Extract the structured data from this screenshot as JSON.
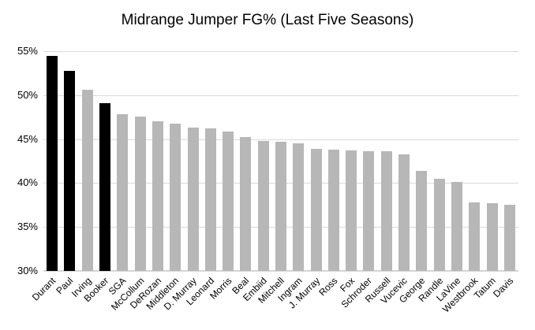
{
  "chart_data": {
    "type": "bar",
    "title": "Midrange Jumper FG% (Last Five Seasons)",
    "xlabel": "",
    "ylabel": "",
    "ylim": [
      30,
      55
    ],
    "grid": true,
    "legend": "none",
    "y_ticks": [
      {
        "v": 30,
        "label": "30%"
      },
      {
        "v": 35,
        "label": "35%"
      },
      {
        "v": 40,
        "label": "40%"
      },
      {
        "v": 45,
        "label": "45%"
      },
      {
        "v": 50,
        "label": "50%"
      },
      {
        "v": 55,
        "label": "55%"
      }
    ],
    "categories": [
      "Durant",
      "Paul",
      "Irving",
      "Booker",
      "SGA",
      "McCollum",
      "DeRozan",
      "Middleton",
      "D. Murray",
      "Leonard",
      "Morris",
      "Beal",
      "Embiid",
      "Mitchell",
      "Ingram",
      "J. Murray",
      "Ross",
      "Fox",
      "Schroder",
      "Russell",
      "Vucevic",
      "George",
      "Randle",
      "LaVine",
      "Westbrook",
      "Tatum",
      "Davis"
    ],
    "values": [
      54.5,
      52.8,
      50.6,
      49.1,
      47.8,
      47.6,
      47.0,
      46.8,
      46.3,
      46.2,
      45.9,
      45.2,
      44.8,
      44.7,
      44.5,
      43.9,
      43.8,
      43.7,
      43.6,
      43.6,
      43.3,
      41.4,
      40.5,
      40.1,
      37.8,
      37.7,
      37.5
    ],
    "bar_colors": [
      "#000000",
      "#000000",
      "#b7b7b7",
      "#000000",
      "#b7b7b7",
      "#b7b7b7",
      "#b7b7b7",
      "#b7b7b7",
      "#b7b7b7",
      "#b7b7b7",
      "#b7b7b7",
      "#b7b7b7",
      "#b7b7b7",
      "#b7b7b7",
      "#b7b7b7",
      "#b7b7b7",
      "#b7b7b7",
      "#b7b7b7",
      "#b7b7b7",
      "#b7b7b7",
      "#b7b7b7",
      "#b7b7b7",
      "#b7b7b7",
      "#b7b7b7",
      "#b7b7b7",
      "#b7b7b7",
      "#b7b7b7"
    ],
    "colors": {
      "highlight": "#000000",
      "default": "#b7b7b7",
      "gridline": "#d9d9d9",
      "text": "#000000",
      "background": "#ffffff"
    }
  }
}
